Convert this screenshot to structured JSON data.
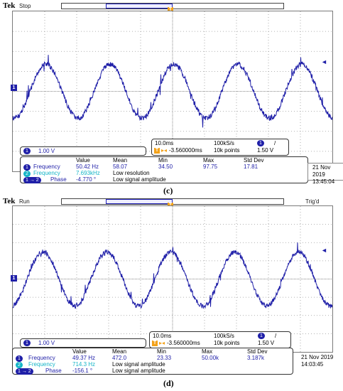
{
  "scopes": [
    {
      "id": "c",
      "brand": "Tek",
      "run_state": "Stop",
      "trigger_status": "",
      "channel_scale": "1.00 V",
      "timebase": "10.0ms",
      "sample_rate": "100kS/s",
      "trigger_delay": "-3.560000ms",
      "record_length": "10k points",
      "trigger_level": "1.50 V",
      "trigger_slope": "/",
      "date": "21 Nov 2019",
      "time": "13:45:04",
      "caption": "(c)",
      "table": {
        "headers": [
          "Value",
          "Mean",
          "Min",
          "Max",
          "Std Dev"
        ],
        "rows": [
          {
            "label": "Frequency",
            "badge": "1",
            "value": "50.42 Hz",
            "mean": "58.07",
            "min": "34.50",
            "max": "97.75",
            "std": "17.81"
          },
          {
            "label": "Frequency",
            "badge": "2",
            "value": "7.693kHz",
            "note": "Low resolution"
          },
          {
            "label": "Phase",
            "badge": "1 → 2",
            "value": "-4.770 °",
            "note": "Low signal amplitude"
          }
        ]
      }
    },
    {
      "id": "d",
      "brand": "Tek",
      "run_state": "Run",
      "trigger_status": "Trig'd",
      "channel_scale": "1.00 V",
      "timebase": "10.0ms",
      "sample_rate": "100kS/s",
      "trigger_delay": "-3.560000ms",
      "record_length": "10k points",
      "trigger_level": "1.50 V",
      "trigger_slope": "/",
      "date": "21 Nov 2019",
      "time": "14:03:45",
      "caption": "(d)",
      "table": {
        "headers": [
          "Value",
          "Mean",
          "Min",
          "Max",
          "Std Dev"
        ],
        "rows": [
          {
            "label": "Frequency",
            "badge": "1",
            "value": "49.37 Hz",
            "mean": "472.0",
            "min": "23.33",
            "max": "50.00k",
            "std": "3.187k"
          },
          {
            "label": "Frequency",
            "badge": "2",
            "value": "714.3 Hz",
            "note": "Low signal amplitude"
          },
          {
            "label": "Phase",
            "badge": "1 → 2",
            "value": "-156.1 °",
            "note": "Low signal amplitude"
          }
        ]
      }
    }
  ],
  "colors": {
    "trace": "#1f1fa8",
    "ch2": "#16b5c7",
    "trigger": "#f3a21a"
  },
  "icons": {
    "channel_marker": "channel-1-marker",
    "trigger_marker": "trigger-t-marker",
    "level_arrow": "trigger-level-arrow"
  }
}
